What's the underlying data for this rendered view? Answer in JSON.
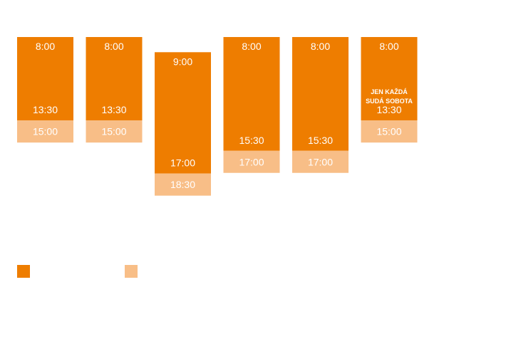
{
  "colors": {
    "primary": "#EE7D00",
    "extended": "#F8BE87",
    "text": "#FFFFFF"
  },
  "chart_data": {
    "type": "bar",
    "orientation": "vertical-range",
    "y_axis": "time of day",
    "grid": false,
    "legend_position": "bottom-left",
    "columns": [
      {
        "start": "8:00",
        "end": "13:30",
        "extended_end": "15:00",
        "note": ""
      },
      {
        "start": "8:00",
        "end": "13:30",
        "extended_end": "15:00",
        "note": ""
      },
      {
        "start": "9:00",
        "end": "17:00",
        "extended_end": "18:30",
        "note": ""
      },
      {
        "start": "8:00",
        "end": "15:30",
        "extended_end": "17:00",
        "note": ""
      },
      {
        "start": "8:00",
        "end": "15:30",
        "extended_end": "17:00",
        "note": ""
      },
      {
        "start": "8:00",
        "end": "13:30",
        "extended_end": "15:00",
        "note": "JEN KAŽDÁ SUDÁ SOBOTA"
      }
    ],
    "series": [
      {
        "name": "",
        "color": "#EE7D00"
      },
      {
        "name": "",
        "color": "#F8BE87"
      }
    ]
  }
}
